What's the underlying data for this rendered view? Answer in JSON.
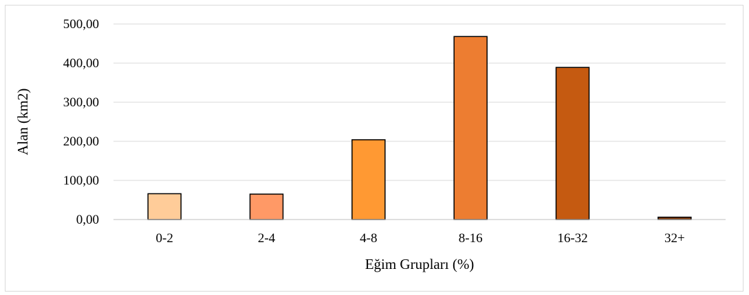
{
  "chart_data": {
    "type": "bar",
    "title": "",
    "xlabel": "Eğim Grupları (%)",
    "ylabel": "Alan (km2)",
    "categories": [
      "0-2",
      "2-4",
      "4-8",
      "8-16",
      "16-32",
      "32+"
    ],
    "values": [
      66,
      65,
      204,
      468,
      389,
      6
    ],
    "ylim": [
      0,
      500
    ],
    "y_ticks": [
      0,
      100,
      200,
      300,
      400,
      500
    ],
    "y_tick_labels": [
      "0,00",
      "100,00",
      "200,00",
      "300,00",
      "400,00",
      "500,00"
    ],
    "grid": true,
    "legend": "none",
    "bar_colors": [
      "#FFCC99",
      "#FF9966",
      "#FF9933",
      "#ED7D31",
      "#C55A11",
      "#843C0C"
    ],
    "gridline_color": "#d9d9d9",
    "bar_edge_color": "#000000"
  }
}
